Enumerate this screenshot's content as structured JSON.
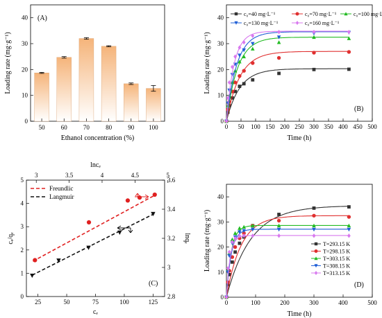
{
  "chart_data": [
    {
      "id": "A",
      "type": "bar",
      "panel_label": "(A)",
      "xlabel": "Ethanol concentration (%)",
      "ylabel": "Loading rate (mg·g⁻¹)",
      "categories": [
        "50",
        "60",
        "70",
        "80",
        "90",
        "100"
      ],
      "values": [
        18.7,
        24.7,
        32.0,
        29.0,
        14.5,
        12.7
      ],
      "errors": [
        0.2,
        0.3,
        0.3,
        0.2,
        0.3,
        1.1
      ],
      "ylim": [
        0,
        45
      ],
      "yticks": [
        0,
        10,
        20,
        30,
        40
      ],
      "bar_gradient": [
        "#f5b47a",
        "#ffffff"
      ]
    },
    {
      "id": "B",
      "type": "line",
      "panel_label": "(B)",
      "xlabel": "Time (h)",
      "ylabel": "Loading rate (mg·g⁻¹)",
      "xlim": [
        0,
        500
      ],
      "ylim": [
        0,
        45
      ],
      "xticks": [
        0,
        50,
        100,
        150,
        200,
        250,
        300,
        350,
        400,
        450,
        500
      ],
      "yticks": [
        0,
        10,
        20,
        30,
        40
      ],
      "legend_position": "top",
      "x": [
        0,
        5,
        10,
        20,
        30,
        45,
        60,
        90,
        180,
        300,
        420
      ],
      "series": [
        {
          "name": "c₀=40  mg·L⁻¹",
          "color": "#333333",
          "marker": "square",
          "values": [
            0,
            3.5,
            6.0,
            9.0,
            11.5,
            13.5,
            14.5,
            16.0,
            18.5,
            20.0,
            20.1
          ],
          "fit": {
            "qe": 20.3,
            "k": 0.022
          }
        },
        {
          "name": "c₀=70  mg·L⁻¹",
          "color": "#e03030",
          "marker": "circle",
          "values": [
            0,
            4.5,
            7.5,
            11.5,
            15.0,
            17.5,
            19.5,
            22.5,
            24.5,
            26.5,
            26.8
          ],
          "fit": {
            "qe": 27.0,
            "k": 0.022
          }
        },
        {
          "name": "c₀=100 mg·L⁻¹",
          "color": "#22bb22",
          "marker": "triangle-up",
          "values": [
            0,
            6.0,
            10.0,
            15.0,
            19.5,
            23.0,
            25.0,
            28.0,
            30.5,
            32.5,
            32.0
          ],
          "fit": {
            "qe": 32.5,
            "k": 0.026
          }
        },
        {
          "name": "c₀=130 mg·L⁻¹",
          "color": "#1f5fd6",
          "marker": "triangle-down",
          "values": [
            0,
            7.0,
            12.0,
            18.0,
            22.0,
            25.5,
            27.5,
            30.0,
            32.5,
            34.0,
            34.3
          ],
          "fit": {
            "qe": 34.6,
            "k": 0.028
          }
        },
        {
          "name": "c₀=160 mg·L⁻¹",
          "color": "#d879ef",
          "marker": "diamond",
          "values": [
            0,
            9.0,
            15.0,
            21.0,
            25.0,
            28.5,
            30.5,
            33.0,
            34.5,
            34.5,
            34.5
          ],
          "fit": {
            "qe": 34.8,
            "k": 0.038
          }
        }
      ]
    },
    {
      "id": "C",
      "type": "scatter",
      "panel_label": "(C)",
      "xlabel": "cₑ",
      "ylabel": "cₑ/qₑ",
      "x2label": "lncₑ",
      "y2label": "lnqₑ",
      "xlim": [
        15,
        135
      ],
      "ylim": [
        0,
        5
      ],
      "xticks": [
        25,
        50,
        75,
        100,
        125
      ],
      "yticks": [
        0,
        1,
        2,
        3,
        4,
        5
      ],
      "x2lim": [
        2.85,
        4.95
      ],
      "y2lim": [
        2.8,
        3.6
      ],
      "x2ticks": [
        3.0,
        3.5,
        4.0,
        4.5,
        5.0
      ],
      "y2ticks": [
        2.8,
        3.0,
        3.2,
        3.4,
        3.6
      ],
      "legend_position": "top-left",
      "series": [
        {
          "name": "Freundlic",
          "color": "#e02020",
          "marker": "circle",
          "axes": "secondary",
          "x": [
            2.98,
            3.8,
            4.39,
            4.57,
            4.8
          ],
          "y": [
            3.05,
            3.31,
            3.46,
            3.48,
            3.5
          ],
          "fit": {
            "slope": 0.245,
            "intercept": 2.32
          }
        },
        {
          "name": "Langmuir",
          "color": "#111111",
          "marker": "triangle-down",
          "axes": "primary",
          "x": [
            20,
            43,
            69,
            96,
            125
          ],
          "y": [
            0.9,
            1.55,
            2.1,
            2.75,
            3.55
          ],
          "fit": {
            "slope": 0.0249,
            "intercept": 0.42
          }
        }
      ]
    },
    {
      "id": "D",
      "type": "line",
      "panel_label": "(D)",
      "xlabel": "Time (h)",
      "ylabel": "Loading rate (mg·g⁻¹)",
      "xlim": [
        0,
        500
      ],
      "ylim": [
        0,
        45
      ],
      "xticks": [
        0,
        100,
        200,
        300,
        400,
        500
      ],
      "yticks": [
        0,
        10,
        20,
        30,
        40
      ],
      "legend_position": "bottom-right",
      "x": [
        0,
        5,
        10,
        20,
        30,
        45,
        60,
        90,
        180,
        300,
        420
      ],
      "series": [
        {
          "name": "T=293.15 K",
          "color": "#333333",
          "marker": "square",
          "values": [
            0,
            5.0,
            9.0,
            14.0,
            18.0,
            21.5,
            24.0,
            28.5,
            33.0,
            35.5,
            36.0
          ],
          "fit": {
            "qe": 36.5,
            "k": 0.012
          }
        },
        {
          "name": "T=298.15 K",
          "color": "#e03030",
          "marker": "circle",
          "values": [
            0,
            6.0,
            10.5,
            16.0,
            20.0,
            23.5,
            25.5,
            28.5,
            30.5,
            32.5,
            32.0
          ],
          "fit": {
            "qe": 32.5,
            "k": 0.02
          }
        },
        {
          "name": "T=303.15 K",
          "color": "#22bb22",
          "marker": "triangle-up",
          "values": [
            0,
            11.0,
            17.5,
            23.0,
            25.5,
            27.5,
            28.0,
            28.5,
            28.5,
            28.5,
            28.5
          ],
          "fit": {
            "qe": 28.6,
            "k": 0.06
          }
        },
        {
          "name": "T=308.15 K",
          "color": "#1f5fd6",
          "marker": "triangle-down",
          "values": [
            0,
            10.0,
            16.5,
            21.5,
            24.0,
            26.0,
            26.5,
            27.0,
            27.0,
            27.0,
            27.0
          ],
          "fit": {
            "qe": 27.1,
            "k": 0.06
          }
        },
        {
          "name": "T=313.15 K",
          "color": "#d879ef",
          "marker": "diamond",
          "values": [
            0,
            11.5,
            18.0,
            22.0,
            23.5,
            24.5,
            24.5,
            24.5,
            24.5,
            24.5,
            24.5
          ],
          "fit": {
            "qe": 24.6,
            "k": 0.08
          }
        }
      ]
    }
  ]
}
